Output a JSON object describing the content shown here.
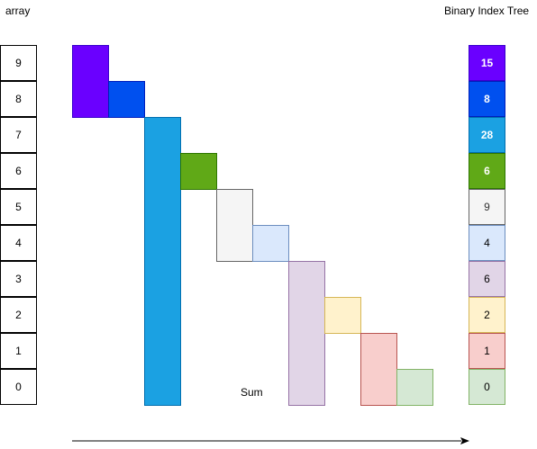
{
  "labels": {
    "array": "array",
    "tree": "Binary Index Tree",
    "sum": "Sum"
  },
  "array_rows": [
    "9",
    "8",
    "7",
    "6",
    "5",
    "4",
    "3",
    "2",
    "1",
    "0"
  ],
  "tree_cells": [
    {
      "value": "15",
      "fill": "#6a00ff",
      "stroke": "#3700cc",
      "text": "#ffffff",
      "bold": true
    },
    {
      "value": "8",
      "fill": "#0050ef",
      "stroke": "#001dbc",
      "text": "#ffffff",
      "bold": true
    },
    {
      "value": "28",
      "fill": "#1ba1e2",
      "stroke": "#006eaf",
      "text": "#ffffff",
      "bold": true
    },
    {
      "value": "6",
      "fill": "#60a917",
      "stroke": "#2d7600",
      "text": "#ffffff",
      "bold": true
    },
    {
      "value": "9",
      "fill": "#f5f5f5",
      "stroke": "#666666",
      "text": "#333333",
      "bold": false
    },
    {
      "value": "4",
      "fill": "#dae8fc",
      "stroke": "#6c8ebf",
      "text": "#000000",
      "bold": false
    },
    {
      "value": "6",
      "fill": "#e1d5e7",
      "stroke": "#9673a6",
      "text": "#000000",
      "bold": false
    },
    {
      "value": "2",
      "fill": "#fff2cc",
      "stroke": "#d6b656",
      "text": "#000000",
      "bold": false
    },
    {
      "value": "1",
      "fill": "#f8cecc",
      "stroke": "#b85450",
      "text": "#000000",
      "bold": false
    },
    {
      "value": "0",
      "fill": "#d5e8d4",
      "stroke": "#82b366",
      "text": "#000000",
      "bold": false
    }
  ],
  "blocks": [
    {
      "name": "block-index-9",
      "fill": "#6a00ff",
      "stroke": "#3700cc"
    },
    {
      "name": "block-index-8",
      "fill": "#0050ef",
      "stroke": "#001dbc"
    },
    {
      "name": "block-index-7",
      "fill": "#1ba1e2",
      "stroke": "#006eaf"
    },
    {
      "name": "block-index-6",
      "fill": "#60a917",
      "stroke": "#2d7600"
    },
    {
      "name": "block-index-5",
      "fill": "#f5f5f5",
      "stroke": "#666666"
    },
    {
      "name": "block-index-4",
      "fill": "#dae8fc",
      "stroke": "#6c8ebf"
    },
    {
      "name": "block-index-3",
      "fill": "#e1d5e7",
      "stroke": "#9673a6"
    },
    {
      "name": "block-index-2",
      "fill": "#fff2cc",
      "stroke": "#d6b656"
    },
    {
      "name": "block-index-1",
      "fill": "#f8cecc",
      "stroke": "#b85450"
    },
    {
      "name": "block-index-0",
      "fill": "#d5e8d4",
      "stroke": "#82b366"
    }
  ],
  "arrow_color": "#000000"
}
